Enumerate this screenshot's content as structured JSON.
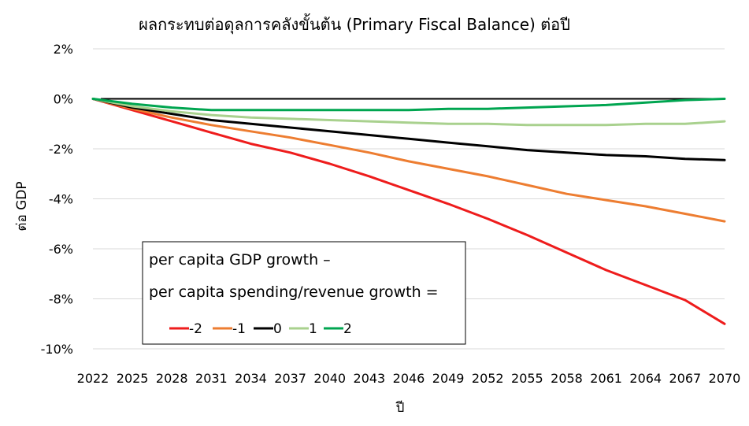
{
  "chart_data": {
    "type": "line",
    "title": "ผลกระทบต่อดุลการคลังขั้นต้น (Primary Fiscal Balance) ต่อปี",
    "xlabel": "ปี",
    "ylabel": "ต่อ GDP",
    "x_ticks": [
      "2022",
      "2025",
      "2028",
      "2031",
      "2034",
      "2037",
      "2040",
      "2043",
      "2046",
      "2049",
      "2052",
      "2055",
      "2058",
      "2061",
      "2064",
      "2067",
      "2070"
    ],
    "y_ticks": [
      "2%",
      "0%",
      "-2%",
      "-4%",
      "-6%",
      "-8%",
      "-10%"
    ],
    "ylim": [
      -10,
      2
    ],
    "xlim": [
      2022,
      2070
    ],
    "grid": true,
    "zero_line": true,
    "legend": {
      "title_line1": "per capita GDP growth –",
      "title_line2": "per capita spending/revenue growth =",
      "placement": "lower-left"
    },
    "series": [
      {
        "name": "-2",
        "color": "#ee1c1c",
        "x": [
          2022,
          2025,
          2028,
          2031,
          2034,
          2037,
          2040,
          2043,
          2046,
          2049,
          2052,
          2055,
          2058,
          2061,
          2064,
          2067,
          2070
        ],
        "values": [
          0,
          -0.45,
          -0.9,
          -1.35,
          -1.8,
          -2.15,
          -2.6,
          -3.1,
          -3.65,
          -4.2,
          -4.8,
          -5.45,
          -6.15,
          -6.85,
          -7.45,
          -8.05,
          -9.0
        ]
      },
      {
        "name": "-1",
        "color": "#ed7d31",
        "x": [
          2022,
          2025,
          2028,
          2031,
          2034,
          2037,
          2040,
          2043,
          2046,
          2049,
          2052,
          2055,
          2058,
          2061,
          2064,
          2067,
          2070
        ],
        "values": [
          0,
          -0.4,
          -0.75,
          -1.05,
          -1.3,
          -1.55,
          -1.85,
          -2.15,
          -2.5,
          -2.8,
          -3.1,
          -3.45,
          -3.8,
          -4.05,
          -4.3,
          -4.6,
          -4.9
        ]
      },
      {
        "name": "0",
        "color": "#000000",
        "x": [
          2022,
          2025,
          2028,
          2031,
          2034,
          2037,
          2040,
          2043,
          2046,
          2049,
          2052,
          2055,
          2058,
          2061,
          2064,
          2067,
          2070
        ],
        "values": [
          0,
          -0.35,
          -0.6,
          -0.85,
          -1.0,
          -1.15,
          -1.3,
          -1.45,
          -1.6,
          -1.75,
          -1.9,
          -2.05,
          -2.15,
          -2.25,
          -2.3,
          -2.4,
          -2.45
        ]
      },
      {
        "name": "1",
        "color": "#a9d18e",
        "x": [
          2022,
          2025,
          2028,
          2031,
          2034,
          2037,
          2040,
          2043,
          2046,
          2049,
          2052,
          2055,
          2058,
          2061,
          2064,
          2067,
          2070
        ],
        "values": [
          0,
          -0.3,
          -0.5,
          -0.65,
          -0.75,
          -0.8,
          -0.85,
          -0.9,
          -0.95,
          -1.0,
          -1.0,
          -1.05,
          -1.05,
          -1.05,
          -1.0,
          -1.0,
          -0.9
        ]
      },
      {
        "name": "2",
        "color": "#00a550",
        "x": [
          2022,
          2025,
          2028,
          2031,
          2034,
          2037,
          2040,
          2043,
          2046,
          2049,
          2052,
          2055,
          2058,
          2061,
          2064,
          2067,
          2070
        ],
        "values": [
          0,
          -0.2,
          -0.35,
          -0.45,
          -0.45,
          -0.45,
          -0.45,
          -0.45,
          -0.45,
          -0.4,
          -0.4,
          -0.35,
          -0.3,
          -0.25,
          -0.15,
          -0.05,
          0
        ]
      }
    ]
  }
}
